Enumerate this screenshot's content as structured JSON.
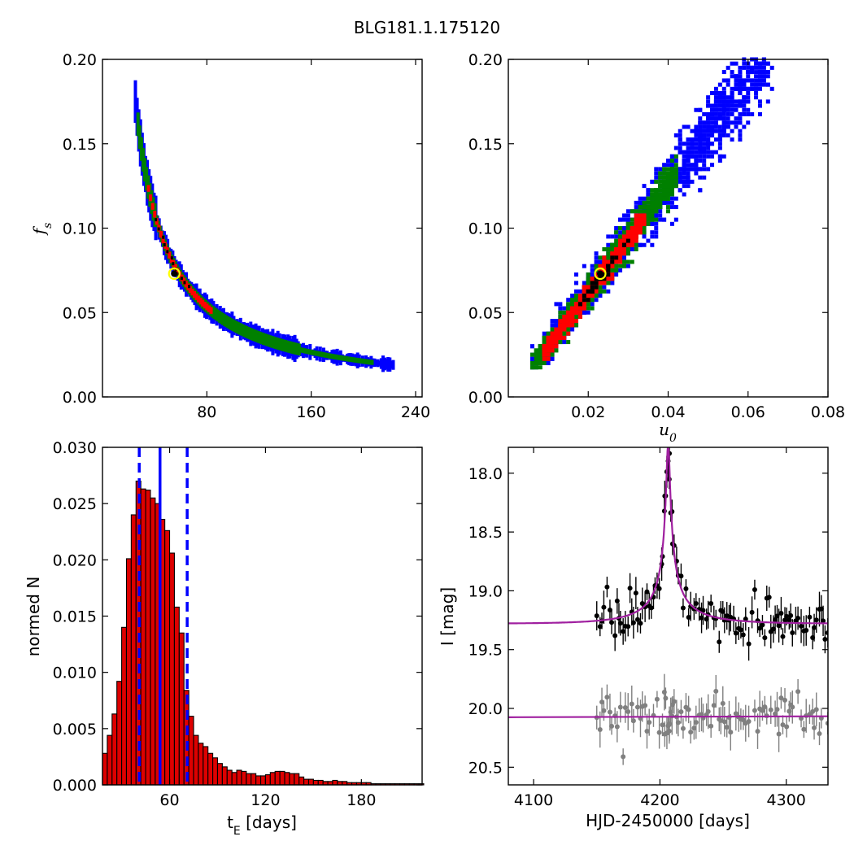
{
  "figure": {
    "title": "BLG181.1.175120"
  },
  "colors": {
    "blue": "#0000ff",
    "green": "#008000",
    "red": "#ff0000",
    "black": "#000000",
    "best_fit_marker": "#ffff00",
    "histogram_bar": "#dd0000",
    "model_curve": "#a020a0",
    "second_band": "#808080"
  },
  "chart_data": [
    {
      "id": "fs_vs_tE",
      "type": "heatmap",
      "title": "",
      "xlabel": "",
      "ylabel": "f_s",
      "xlim": [
        0,
        245
      ],
      "ylim": [
        0,
        0.2
      ],
      "xticks": [
        "80",
        "160",
        "240"
      ],
      "yticks": [
        "0.00",
        "0.05",
        "0.10",
        "0.15",
        "0.20"
      ],
      "relation": "f_s ≈ 4.2 / t_E",
      "tE_range": [
        24,
        222
      ],
      "confidence_levels": [
        "black",
        "red",
        "green",
        "blue"
      ],
      "best_fit": {
        "tE": 55,
        "fs": 0.073
      }
    },
    {
      "id": "fs_vs_u0",
      "type": "heatmap",
      "title": "",
      "xlabel": "u_0",
      "ylabel": "",
      "xlim": [
        0,
        0.08
      ],
      "ylim": [
        0,
        0.2
      ],
      "xticks": [
        "0.02",
        "0.04",
        "0.06",
        "0.08"
      ],
      "yticks": [
        "0.00",
        "0.05",
        "0.10",
        "0.15",
        "0.20"
      ],
      "relation": "f_s ≈ 3.2 · u_0",
      "u0_range": [
        0.005,
        0.066
      ],
      "confidence_levels": [
        "black",
        "red",
        "green",
        "blue"
      ],
      "best_fit": {
        "u0": 0.023,
        "fs": 0.073
      }
    },
    {
      "id": "tE_histogram",
      "type": "bar",
      "title": "",
      "xlabel": "t_E [days]",
      "ylabel": "normed N",
      "xlim": [
        18,
        218
      ],
      "ylim": [
        0,
        0.03
      ],
      "xticks": [
        "60",
        "120",
        "180"
      ],
      "yticks": [
        "0.000",
        "0.005",
        "0.010",
        "0.015",
        "0.020",
        "0.025",
        "0.030"
      ],
      "bin_width": 3,
      "bin_start": 18,
      "values": [
        0.0028,
        0.0044,
        0.0063,
        0.0092,
        0.014,
        0.0201,
        0.024,
        0.027,
        0.0263,
        0.0262,
        0.0255,
        0.025,
        0.0236,
        0.0226,
        0.0206,
        0.0158,
        0.0135,
        0.0084,
        0.0061,
        0.0044,
        0.0037,
        0.0034,
        0.0028,
        0.0024,
        0.0019,
        0.0016,
        0.0013,
        0.0011,
        0.0013,
        0.0012,
        0.001,
        0.001,
        0.0008,
        0.0008,
        0.0009,
        0.0011,
        0.0012,
        0.0012,
        0.0011,
        0.001,
        0.001,
        0.0007,
        0.0005,
        0.0005,
        0.0004,
        0.0004,
        0.0003,
        0.0003,
        0.0004,
        0.0003,
        0.0003,
        0.0002,
        0.0002,
        0.0002,
        0.0002,
        0.0002,
        0.0001,
        0.0001,
        0.0001,
        0.0001,
        0.0001,
        0.0001,
        0.0001,
        0.0001,
        0.0001,
        0.0001,
        0.0001
      ],
      "median": 54,
      "lower_bound": 41,
      "upper_bound": 71
    },
    {
      "id": "light_curve",
      "type": "scatter",
      "title": "",
      "xlabel": "HJD-2450000 [days]",
      "ylabel": "I [mag]",
      "xlim": [
        4080,
        4333
      ],
      "ylim": [
        20.65,
        17.78
      ],
      "xticks": [
        "4100",
        "4200",
        "4300"
      ],
      "yticks": [
        "18.0",
        "18.5",
        "19.0",
        "19.5",
        "20.0",
        "20.5"
      ],
      "peak_time": 4206.5,
      "series": [
        {
          "baseline_mag": 19.28,
          "peak_mag": 17.82
        },
        {
          "baseline_mag": 20.07
        }
      ]
    }
  ]
}
